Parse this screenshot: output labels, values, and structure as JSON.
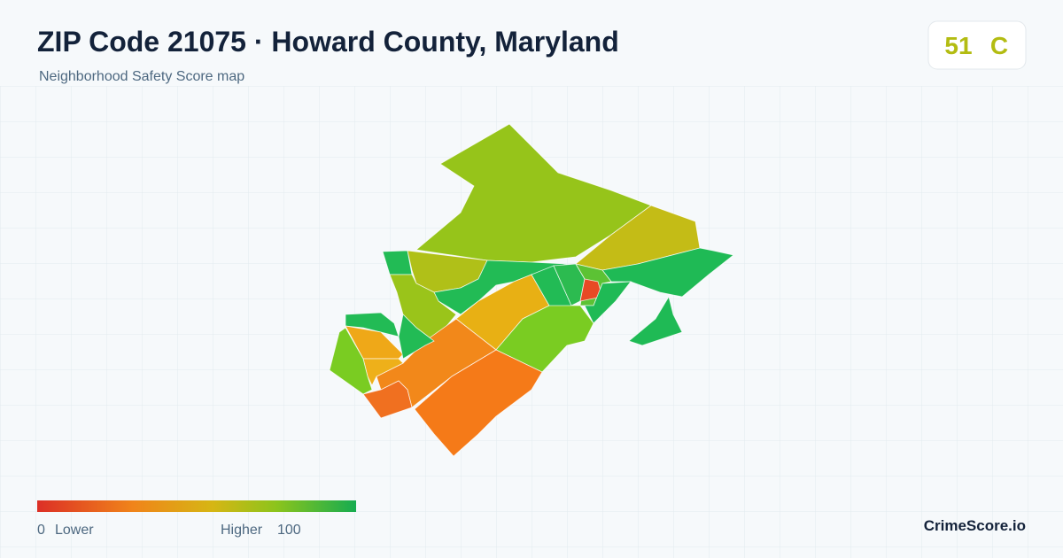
{
  "header": {
    "title": "ZIP Code 21075 · Howard County, Maryland",
    "subtitle": "Neighborhood Safety Score map"
  },
  "badge": {
    "score": 51,
    "grade": "C"
  },
  "legend": {
    "min": 0,
    "min_label": "Lower",
    "max_label": "Higher",
    "max": 100
  },
  "brand": "CrimeScore.io"
}
